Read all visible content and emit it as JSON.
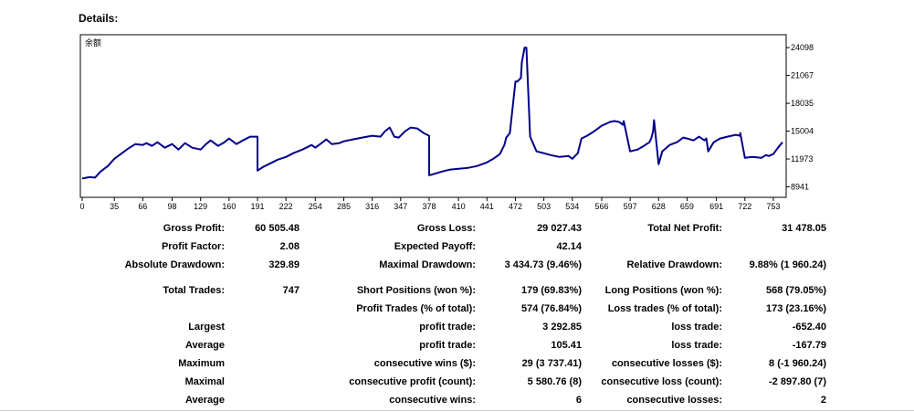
{
  "details_title": "Details:",
  "chart_data": {
    "type": "line",
    "title": "余额",
    "xlabel": "",
    "ylabel": "",
    "x_ticks": [
      0,
      35,
      66,
      98,
      129,
      160,
      191,
      222,
      254,
      285,
      316,
      347,
      378,
      410,
      441,
      472,
      503,
      534,
      566,
      597,
      628,
      659,
      691,
      722,
      753
    ],
    "y_ticks": [
      8941,
      11973,
      15004,
      18035,
      21067,
      24098
    ],
    "xlim": [
      0,
      765
    ],
    "ylim": [
      8000,
      25300
    ],
    "series": [
      {
        "name": "余额",
        "x": [
          0,
          8,
          14,
          20,
          28,
          35,
          42,
          50,
          58,
          66,
          70,
          76,
          82,
          90,
          98,
          105,
          112,
          120,
          129,
          135,
          140,
          148,
          155,
          160,
          168,
          175,
          183,
          191,
          191,
          197,
          205,
          213,
          222,
          230,
          240,
          250,
          254,
          262,
          266,
          272,
          280,
          285,
          295,
          305,
          316,
          325,
          330,
          335,
          340,
          345,
          347,
          352,
          358,
          365,
          372,
          378,
          378,
          385,
          392,
          400,
          410,
          420,
          430,
          441,
          448,
          455,
          460,
          462,
          466,
          472,
          474,
          478,
          479,
          482,
          484,
          488,
          495,
          503,
          510,
          520,
          530,
          534,
          540,
          544,
          550,
          558,
          566,
          575,
          580,
          585,
          589,
          590,
          597,
          605,
          612,
          618,
          620,
          622,
          623,
          628,
          632,
          640,
          648,
          655,
          659,
          666,
          672,
          678,
          680,
          682,
          688,
          695,
          703,
          712,
          717,
          717,
          722,
          730,
          740,
          745,
          748,
          753,
          758,
          763
        ],
        "y": [
          9850,
          10000,
          9950,
          10600,
          11200,
          12000,
          12500,
          13100,
          13600,
          13500,
          13700,
          13400,
          13800,
          13200,
          13600,
          13000,
          13700,
          13200,
          13000,
          13600,
          14000,
          13400,
          13800,
          14200,
          13600,
          14000,
          14400,
          14400,
          10700,
          11100,
          11500,
          11900,
          12200,
          12600,
          13000,
          13500,
          13200,
          13800,
          14100,
          13600,
          13700,
          13900,
          14100,
          14300,
          14500,
          14400,
          15000,
          15400,
          14400,
          14300,
          14500,
          15000,
          15400,
          15300,
          14800,
          14500,
          10200,
          10400,
          10600,
          10800,
          10900,
          11000,
          11200,
          11600,
          12000,
          12500,
          13500,
          14300,
          14800,
          20400,
          20400,
          20800,
          22500,
          24098,
          24098,
          14400,
          12800,
          12600,
          12400,
          12200,
          12300,
          12000,
          12600,
          14200,
          14500,
          15000,
          15600,
          16000,
          16100,
          16000,
          15700,
          16100,
          12800,
          13000,
          13400,
          13800,
          14200,
          15000,
          16200,
          11400,
          12800,
          13500,
          13800,
          14300,
          14200,
          14000,
          14400,
          14000,
          14200,
          12800,
          13800,
          14200,
          14400,
          14600,
          14500,
          14800,
          12100,
          12200,
          12100,
          12400,
          12300,
          12500,
          13200,
          13800
        ]
      }
    ]
  },
  "stats": {
    "gross_profit": {
      "label": "Gross Profit:",
      "value": "60 505.48"
    },
    "gross_loss": {
      "label": "Gross Loss:",
      "value": "29 027.43"
    },
    "total_net_profit": {
      "label": "Total Net Profit:",
      "value": "31 478.05"
    },
    "profit_factor": {
      "label": "Profit Factor:",
      "value": "2.08"
    },
    "expected_payoff": {
      "label": "Expected Payoff:",
      "value": "42.14"
    },
    "absolute_drawdown": {
      "label": "Absolute Drawdown:",
      "value": "329.89"
    },
    "maximal_drawdown": {
      "label": "Maximal Drawdown:",
      "value": "3 434.73 (9.46%)"
    },
    "relative_drawdown": {
      "label": "Relative Drawdown:",
      "value": "9.88% (1 960.24)"
    },
    "total_trades": {
      "label": "Total Trades:",
      "value": "747"
    },
    "short_positions": {
      "label": "Short Positions (won %):",
      "value": "179 (69.83%)"
    },
    "long_positions": {
      "label": "Long Positions (won %):",
      "value": "568 (79.05%)"
    },
    "profit_trades": {
      "label": "Profit Trades (% of total):",
      "value": "574 (76.84%)"
    },
    "loss_trades": {
      "label": "Loss trades (% of total):",
      "value": "173 (23.16%)"
    },
    "largest": {
      "label": "Largest",
      "profit_label": "profit trade:",
      "profit_value": "3 292.85",
      "loss_label": "loss trade:",
      "loss_value": "-652.40"
    },
    "average": {
      "label": "Average",
      "profit_label": "profit trade:",
      "profit_value": "105.41",
      "loss_label": "loss trade:",
      "loss_value": "-167.79"
    },
    "maximum": {
      "label": "Maximum",
      "profit_label": "consecutive wins ($):",
      "profit_value": "29 (3 737.41)",
      "loss_label": "consecutive losses ($):",
      "loss_value": "8 (-1 960.24)"
    },
    "maximal": {
      "label": "Maximal",
      "profit_label": "consecutive profit (count):",
      "profit_value": "5 580.76 (8)",
      "loss_label": "consecutive loss (count):",
      "loss_value": "-2 897.80 (7)"
    },
    "average2": {
      "label": "Average",
      "profit_label": "consecutive wins:",
      "profit_value": "6",
      "loss_label": "consecutive losses:",
      "loss_value": "2"
    }
  }
}
